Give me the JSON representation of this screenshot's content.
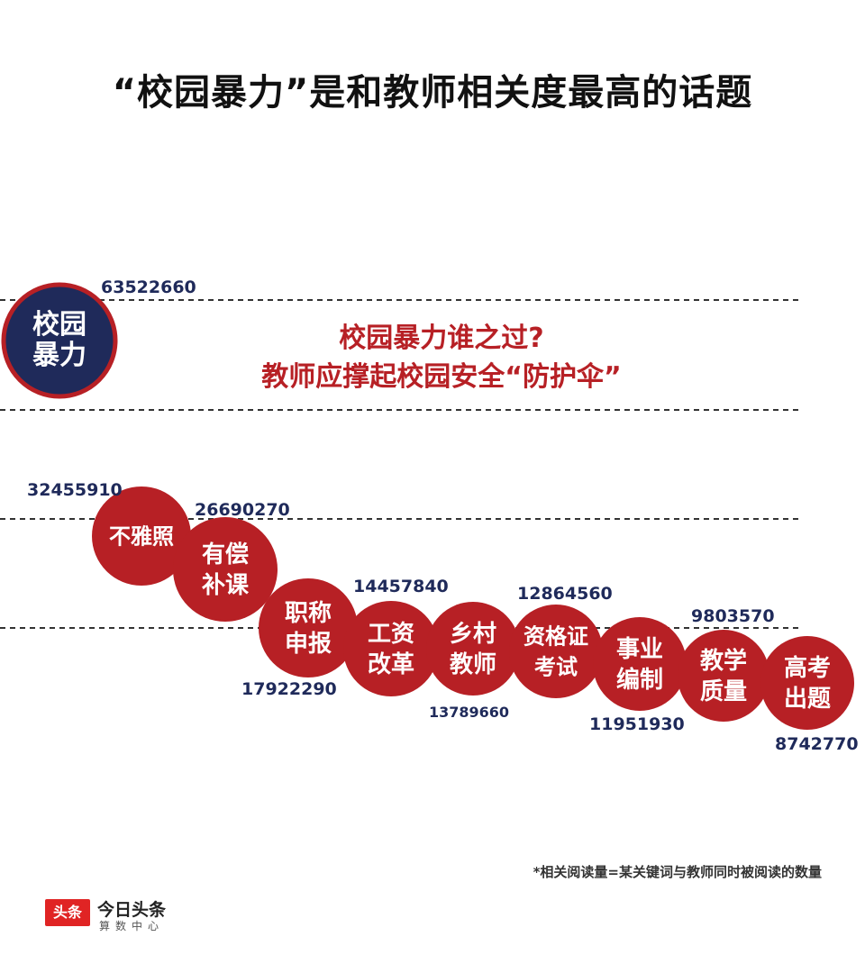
{
  "title": "“校园暴力”是和教师相关度最高的话题",
  "headline": {
    "line1": "校园暴力谁之过?",
    "line2": "教师应撑起校园安全“防护伞”"
  },
  "footnote": "*相关阅读量=某关键词与教师同时被阅读的数量",
  "brand": {
    "badge": "头条",
    "name": "今日头条",
    "sub": "算数中心"
  },
  "colors": {
    "top_bubble": "#1f2a5a",
    "top_bubble_border": "#b72025",
    "bubble": "#b72025",
    "value_text": "#1f2a5a",
    "headline_text": "#b72025",
    "dashed_line": "#333333"
  },
  "chart_data": {
    "type": "bubble-scatter",
    "title": "“校园暴力”是和教师相关度最高的话题",
    "categories": [
      "校园暴力",
      "不雅照",
      "有偿补课",
      "职称申报",
      "工资改革",
      "乡村教师",
      "资格证考试",
      "事业编制",
      "教学质量",
      "高考出题"
    ],
    "label_lines": [
      [
        "校园",
        "暴力"
      ],
      [
        "不雅照"
      ],
      [
        "有偿",
        "补课"
      ],
      [
        "职称",
        "申报"
      ],
      [
        "工资",
        "改革"
      ],
      [
        "乡村",
        "教师"
      ],
      [
        "资格证",
        "考试"
      ],
      [
        "事业",
        "编制"
      ],
      [
        "教学",
        "质量"
      ],
      [
        "高考",
        "出题"
      ]
    ],
    "values": [
      63522660,
      32455910,
      26690270,
      17922290,
      14457840,
      13789660,
      12864560,
      11951930,
      9803570,
      8742770
    ],
    "value_labels": [
      "63522660",
      "32455910",
      "26690270",
      "17922290",
      "14457840",
      "13789660",
      "12864560",
      "11951930",
      "9803570",
      "8742770"
    ],
    "highlight": "校园暴力",
    "note": "*相关阅读量=某关键词与教师同时被阅读的数量"
  }
}
